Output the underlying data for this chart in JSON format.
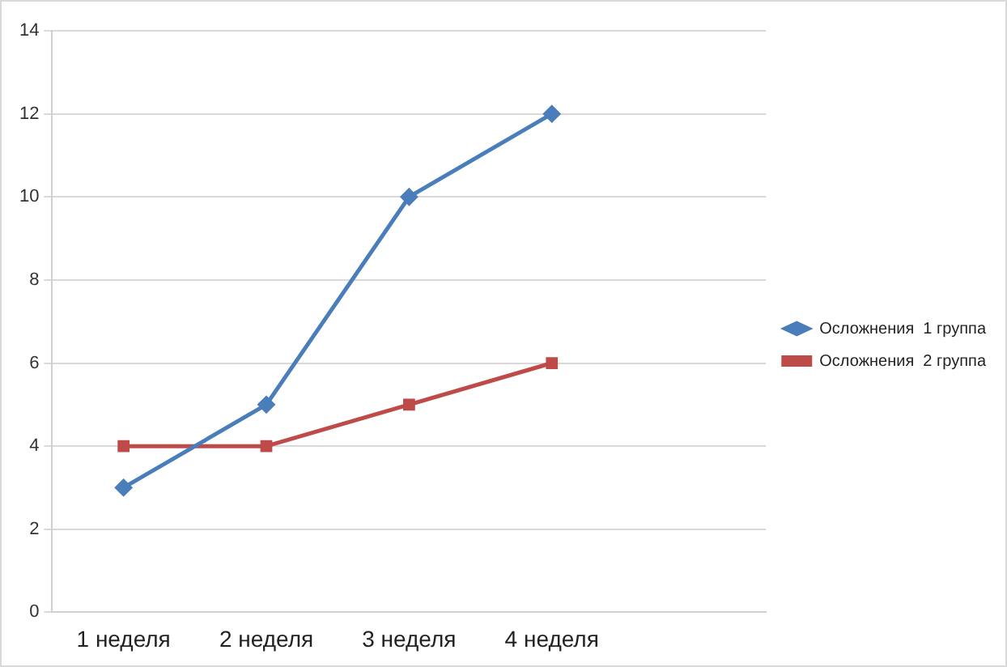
{
  "chart_data": {
    "type": "line",
    "categories": [
      "1 неделя",
      "2 неделя",
      "3 неделя",
      "4 неделя",
      null
    ],
    "series": [
      {
        "name": "Осложнения  1 группа",
        "color": "#4a7ebb",
        "values": [
          3,
          5,
          10,
          12,
          null
        ],
        "marker": "diamond"
      },
      {
        "name": "Осложнения  2 группа",
        "color": "#be4b48",
        "values": [
          4,
          4,
          5,
          6,
          null
        ],
        "marker": "square"
      }
    ],
    "ylim": [
      0,
      14
    ],
    "yticks": [
      0,
      2,
      4,
      6,
      8,
      10,
      12,
      14
    ],
    "grid": "y",
    "legend": "right"
  }
}
